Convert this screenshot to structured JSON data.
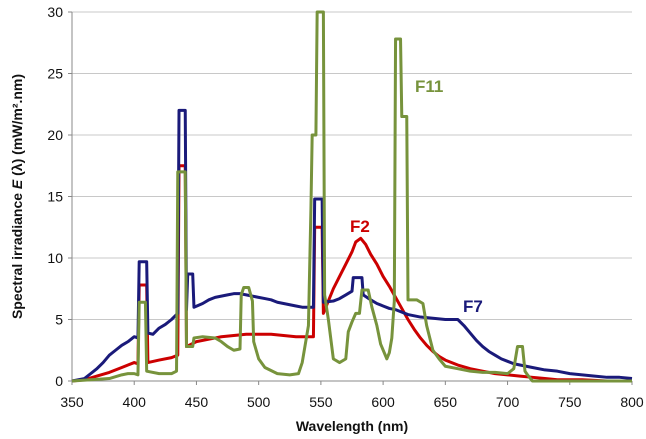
{
  "chart_data": {
    "type": "line",
    "title": "",
    "xlabel": "Wavelength (nm)",
    "ylabel_prefix": "Spectral irradiance ",
    "ylabel_symbol": "E",
    "ylabel_suffix": " (λ) (mW/m².nm)",
    "xlim": [
      350,
      800
    ],
    "ylim": [
      0,
      30
    ],
    "x_ticks": [
      350,
      400,
      450,
      500,
      550,
      600,
      650,
      700,
      750,
      800
    ],
    "y_ticks": [
      0,
      5,
      10,
      15,
      20,
      25,
      30
    ],
    "x_tick_labels": [
      "350",
      "400",
      "450",
      "500",
      "550",
      "600",
      "650",
      "700",
      "750",
      "800"
    ],
    "y_tick_labels": [
      "0",
      "5",
      "10",
      "15",
      "20",
      "25",
      "30"
    ],
    "grid": "horizontal",
    "legend": "none",
    "series": [
      {
        "name": "F7",
        "color": "#1a1a7a",
        "points": [
          [
            350,
            0.0
          ],
          [
            360,
            0.2
          ],
          [
            365,
            0.6
          ],
          [
            370,
            1.0
          ],
          [
            375,
            1.5
          ],
          [
            380,
            2.1
          ],
          [
            385,
            2.5
          ],
          [
            390,
            2.9
          ],
          [
            395,
            3.2
          ],
          [
            400,
            3.6
          ],
          [
            403,
            3.5
          ],
          [
            404,
            9.7
          ],
          [
            410,
            9.7
          ],
          [
            411,
            3.9
          ],
          [
            415,
            3.8
          ],
          [
            420,
            4.3
          ],
          [
            425,
            4.6
          ],
          [
            430,
            5.0
          ],
          [
            435,
            5.5
          ],
          [
            436,
            22.0
          ],
          [
            441,
            22.0
          ],
          [
            442,
            5.8
          ],
          [
            443,
            8.7
          ],
          [
            447,
            8.7
          ],
          [
            448,
            6.0
          ],
          [
            455,
            6.3
          ],
          [
            460,
            6.6
          ],
          [
            465,
            6.8
          ],
          [
            470,
            6.9
          ],
          [
            475,
            7.0
          ],
          [
            480,
            7.1
          ],
          [
            485,
            7.1
          ],
          [
            490,
            7.0
          ],
          [
            495,
            6.9
          ],
          [
            500,
            6.8
          ],
          [
            505,
            6.7
          ],
          [
            510,
            6.6
          ],
          [
            515,
            6.4
          ],
          [
            520,
            6.3
          ],
          [
            525,
            6.2
          ],
          [
            530,
            6.1
          ],
          [
            535,
            6.0
          ],
          [
            540,
            6.0
          ],
          [
            544,
            6.0
          ],
          [
            545,
            14.8
          ],
          [
            551,
            14.8
          ],
          [
            552,
            6.4
          ],
          [
            560,
            6.5
          ],
          [
            565,
            6.7
          ],
          [
            570,
            7.0
          ],
          [
            575,
            7.3
          ],
          [
            576,
            8.4
          ],
          [
            583,
            8.4
          ],
          [
            584,
            7.0
          ],
          [
            590,
            6.6
          ],
          [
            595,
            6.3
          ],
          [
            600,
            6.1
          ],
          [
            605,
            5.9
          ],
          [
            610,
            5.8
          ],
          [
            615,
            5.6
          ],
          [
            620,
            5.4
          ],
          [
            625,
            5.3
          ],
          [
            630,
            5.2
          ],
          [
            640,
            5.1
          ],
          [
            650,
            5.0
          ],
          [
            655,
            5.0
          ],
          [
            660,
            5.0
          ],
          [
            665,
            4.5
          ],
          [
            670,
            3.9
          ],
          [
            675,
            3.3
          ],
          [
            680,
            2.8
          ],
          [
            685,
            2.4
          ],
          [
            690,
            2.1
          ],
          [
            695,
            1.8
          ],
          [
            700,
            1.6
          ],
          [
            705,
            1.4
          ],
          [
            710,
            1.3
          ],
          [
            720,
            1.1
          ],
          [
            730,
            0.9
          ],
          [
            740,
            0.8
          ],
          [
            750,
            0.6
          ],
          [
            760,
            0.5
          ],
          [
            770,
            0.4
          ],
          [
            780,
            0.3
          ],
          [
            790,
            0.3
          ],
          [
            800,
            0.2
          ]
        ]
      },
      {
        "name": "F2",
        "color": "#cc0000",
        "points": [
          [
            350,
            0.0
          ],
          [
            360,
            0.1
          ],
          [
            370,
            0.4
          ],
          [
            380,
            0.7
          ],
          [
            390,
            1.1
          ],
          [
            395,
            1.3
          ],
          [
            400,
            1.5
          ],
          [
            403,
            1.4
          ],
          [
            404,
            7.8
          ],
          [
            410,
            7.8
          ],
          [
            411,
            1.5
          ],
          [
            420,
            1.7
          ],
          [
            430,
            1.9
          ],
          [
            435,
            2.1
          ],
          [
            436,
            17.5
          ],
          [
            441,
            17.5
          ],
          [
            442,
            2.8
          ],
          [
            450,
            3.2
          ],
          [
            460,
            3.4
          ],
          [
            470,
            3.6
          ],
          [
            480,
            3.7
          ],
          [
            490,
            3.8
          ],
          [
            500,
            3.8
          ],
          [
            510,
            3.8
          ],
          [
            520,
            3.7
          ],
          [
            530,
            3.6
          ],
          [
            540,
            3.6
          ],
          [
            544,
            3.6
          ],
          [
            545,
            12.5
          ],
          [
            551,
            12.5
          ],
          [
            552,
            5.5
          ],
          [
            560,
            7.5
          ],
          [
            565,
            8.5
          ],
          [
            570,
            9.5
          ],
          [
            575,
            10.5
          ],
          [
            578,
            11.3
          ],
          [
            582,
            11.6
          ],
          [
            586,
            11.1
          ],
          [
            590,
            10.3
          ],
          [
            595,
            9.5
          ],
          [
            600,
            8.5
          ],
          [
            605,
            7.7
          ],
          [
            610,
            6.8
          ],
          [
            615,
            5.9
          ],
          [
            620,
            5.0
          ],
          [
            625,
            4.2
          ],
          [
            630,
            3.5
          ],
          [
            635,
            2.9
          ],
          [
            640,
            2.4
          ],
          [
            645,
            2.0
          ],
          [
            650,
            1.7
          ],
          [
            660,
            1.3
          ],
          [
            670,
            1.0
          ],
          [
            680,
            0.8
          ],
          [
            690,
            0.6
          ],
          [
            700,
            0.5
          ],
          [
            710,
            0.4
          ],
          [
            720,
            0.3
          ],
          [
            730,
            0.2
          ],
          [
            740,
            0.1
          ],
          [
            760,
            0.1
          ],
          [
            780,
            0.0
          ],
          [
            800,
            0.0
          ]
        ]
      },
      {
        "name": "F11",
        "color": "#77933c",
        "points": [
          [
            350,
            0.0
          ],
          [
            380,
            0.2
          ],
          [
            390,
            0.5
          ],
          [
            395,
            0.6
          ],
          [
            400,
            0.6
          ],
          [
            403,
            0.5
          ],
          [
            404,
            6.4
          ],
          [
            409,
            6.4
          ],
          [
            410,
            0.8
          ],
          [
            420,
            0.6
          ],
          [
            430,
            0.6
          ],
          [
            434,
            0.8
          ],
          [
            435,
            17.0
          ],
          [
            441,
            17.0
          ],
          [
            442,
            2.8
          ],
          [
            447,
            2.8
          ],
          [
            448,
            3.5
          ],
          [
            455,
            3.6
          ],
          [
            465,
            3.5
          ],
          [
            470,
            3.2
          ],
          [
            475,
            2.8
          ],
          [
            480,
            2.5
          ],
          [
            485,
            2.6
          ],
          [
            486,
            7.0
          ],
          [
            488,
            7.6
          ],
          [
            492,
            7.6
          ],
          [
            495,
            6.5
          ],
          [
            496,
            3.2
          ],
          [
            500,
            1.8
          ],
          [
            505,
            1.1
          ],
          [
            515,
            0.6
          ],
          [
            525,
            0.5
          ],
          [
            532,
            0.6
          ],
          [
            535,
            1.5
          ],
          [
            540,
            4.5
          ],
          [
            542,
            14.0
          ],
          [
            543,
            20.0
          ],
          [
            546,
            20.0
          ],
          [
            547,
            30.0
          ],
          [
            552,
            30.0
          ],
          [
            553,
            7.0
          ],
          [
            556,
            5.0
          ],
          [
            560,
            1.8
          ],
          [
            565,
            1.5
          ],
          [
            570,
            1.8
          ],
          [
            572,
            4.0
          ],
          [
            575,
            4.8
          ],
          [
            578,
            5.5
          ],
          [
            581,
            5.5
          ],
          [
            583,
            7.4
          ],
          [
            588,
            7.4
          ],
          [
            591,
            6.0
          ],
          [
            595,
            4.5
          ],
          [
            598,
            3.0
          ],
          [
            603,
            1.8
          ],
          [
            605,
            2.3
          ],
          [
            607,
            3.5
          ],
          [
            609,
            6.5
          ],
          [
            610,
            27.8
          ],
          [
            614,
            27.8
          ],
          [
            615,
            21.5
          ],
          [
            619,
            21.5
          ],
          [
            620,
            6.6
          ],
          [
            627,
            6.6
          ],
          [
            632,
            6.3
          ],
          [
            635,
            4.5
          ],
          [
            640,
            2.5
          ],
          [
            645,
            1.8
          ],
          [
            650,
            1.2
          ],
          [
            660,
            1.0
          ],
          [
            670,
            0.8
          ],
          [
            680,
            0.7
          ],
          [
            690,
            0.7
          ],
          [
            700,
            0.6
          ],
          [
            705,
            1.0
          ],
          [
            708,
            2.8
          ],
          [
            712,
            2.8
          ],
          [
            714,
            0.8
          ],
          [
            716,
            0.5
          ],
          [
            720,
            0.0
          ],
          [
            800,
            0.0
          ]
        ]
      }
    ]
  }
}
